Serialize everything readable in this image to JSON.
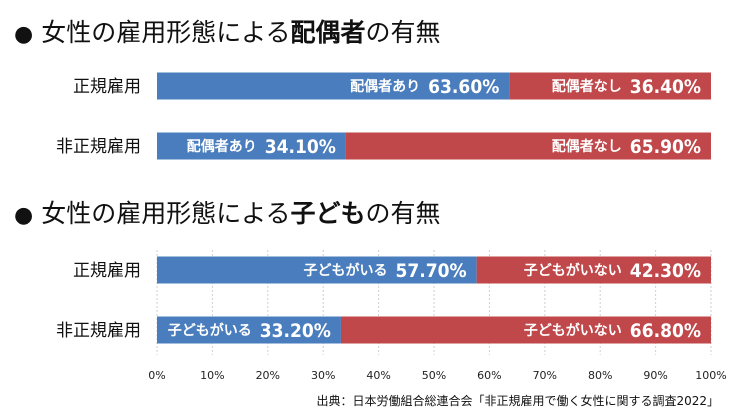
{
  "chart_data": [
    {
      "type": "bar",
      "stacked": true,
      "orientation": "horizontal",
      "title": {
        "bullet": "●",
        "prefix": "女性の雇用形態による",
        "bold": "配偶者",
        "suffix": "の有無"
      },
      "categories": [
        "正規雇用",
        "非正規雇用"
      ],
      "series": [
        {
          "name": "配偶者あり",
          "values": [
            63.6,
            34.1
          ],
          "color": "#4a7dbd"
        },
        {
          "name": "配偶者なし",
          "values": [
            36.4,
            65.9
          ],
          "color": "#c0474a"
        }
      ],
      "value_labels": [
        [
          "63.60%",
          "36.40%"
        ],
        [
          "34.10%",
          "65.90%"
        ]
      ],
      "xlim": [
        0,
        100
      ]
    },
    {
      "type": "bar",
      "stacked": true,
      "orientation": "horizontal",
      "title": {
        "bullet": "●",
        "prefix": "女性の雇用形態による",
        "bold": "子ども",
        "suffix": "の有無"
      },
      "categories": [
        "正規雇用",
        "非正規雇用"
      ],
      "series": [
        {
          "name": "子どもがいる",
          "values": [
            57.7,
            33.2
          ],
          "color": "#4a7dbd"
        },
        {
          "name": "子どもがいない",
          "values": [
            42.3,
            66.8
          ],
          "color": "#c0474a"
        }
      ],
      "value_labels": [
        [
          "57.70%",
          "42.30%"
        ],
        [
          "33.20%",
          "66.80%"
        ]
      ],
      "xlim": [
        0,
        100
      ],
      "xticks": [
        "0%",
        "10%",
        "20%",
        "30%",
        "40%",
        "50%",
        "60%",
        "70%",
        "80%",
        "90%",
        "100%"
      ]
    }
  ],
  "source": "出典：日本労働組合総連合会「非正規雇用で働く女性に関する調査2022」"
}
